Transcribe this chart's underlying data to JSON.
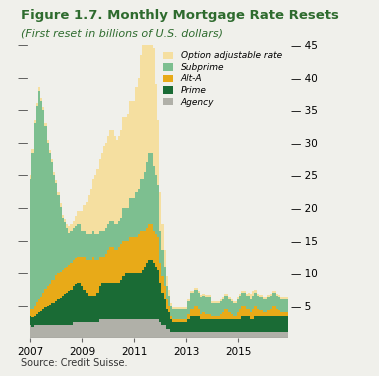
{
  "title": "Figure 1.7. Monthly Mortgage Rate Resets",
  "subtitle": "(First reset in billions of U.S. dollars)",
  "source": "Source: Credit Suisse.",
  "title_color": "#2e6b2e",
  "subtitle_color": "#2e6b2e",
  "colors": {
    "option_adjustable": "#f5dfa0",
    "subprime": "#7dbf90",
    "alt_a": "#e8aa18",
    "prime": "#1a6b35",
    "agency": "#b0b0a8"
  },
  "legend_labels": [
    "Option adjustable rate",
    "Subprime",
    "Alt-A",
    "Prime",
    "Agency"
  ],
  "ylim": [
    0,
    45
  ],
  "yticks": [
    0,
    5,
    10,
    15,
    20,
    25,
    30,
    35,
    40,
    45
  ],
  "bg_color": "#f0f0eb",
  "agency": [
    2.0,
    1.8,
    2.0,
    2.0,
    2.0,
    2.0,
    2.0,
    2.0,
    2.0,
    2.0,
    2.0,
    2.0,
    2.0,
    2.0,
    2.0,
    2.0,
    2.0,
    2.0,
    2.0,
    2.0,
    2.5,
    2.5,
    2.5,
    2.5,
    2.5,
    2.5,
    2.5,
    2.5,
    2.5,
    2.5,
    2.5,
    2.5,
    3.0,
    3.0,
    3.0,
    3.0,
    3.0,
    3.0,
    3.0,
    3.0,
    3.0,
    3.0,
    3.0,
    3.0,
    3.0,
    3.0,
    3.0,
    3.0,
    3.0,
    3.0,
    3.0,
    3.0,
    3.0,
    3.0,
    3.0,
    3.0,
    3.0,
    3.0,
    3.0,
    3.0,
    2.5,
    2.0,
    2.0,
    1.5,
    1.5,
    1.0,
    1.0,
    1.0,
    1.0,
    1.0,
    1.0,
    1.0,
    1.0,
    1.0,
    1.0,
    1.0,
    1.0,
    1.0,
    1.0,
    1.0,
    1.0,
    1.0,
    1.0,
    1.0,
    1.0,
    1.0,
    1.0,
    1.0,
    1.0,
    1.0,
    1.0,
    1.0,
    1.0,
    1.0,
    1.0,
    1.0,
    1.0,
    1.0,
    1.0,
    1.0,
    1.0,
    1.0,
    1.0,
    1.0,
    1.0,
    1.0,
    1.0,
    1.0,
    1.0,
    1.0,
    1.0,
    1.0,
    1.0,
    1.0,
    1.0,
    1.0,
    1.0,
    1.0,
    1.0,
    1.0
  ],
  "prime": [
    1.5,
    1.5,
    1.5,
    1.8,
    2.0,
    2.2,
    2.5,
    2.8,
    3.0,
    3.2,
    3.5,
    3.5,
    3.8,
    4.0,
    4.2,
    4.5,
    4.8,
    5.0,
    5.2,
    5.5,
    5.5,
    5.8,
    6.0,
    6.0,
    5.5,
    5.0,
    4.5,
    4.0,
    4.0,
    4.0,
    4.0,
    4.5,
    5.0,
    5.5,
    5.5,
    5.5,
    5.5,
    5.5,
    5.5,
    5.5,
    5.5,
    5.5,
    6.0,
    6.5,
    7.0,
    7.0,
    7.0,
    7.0,
    7.0,
    7.0,
    7.0,
    7.0,
    7.5,
    8.0,
    8.5,
    9.0,
    9.0,
    8.5,
    8.0,
    7.5,
    6.0,
    5.0,
    4.0,
    3.0,
    2.5,
    2.0,
    1.5,
    1.5,
    1.5,
    1.5,
    1.5,
    1.5,
    1.5,
    2.0,
    2.5,
    2.5,
    2.5,
    2.5,
    2.5,
    2.0,
    2.0,
    2.0,
    2.0,
    2.0,
    2.0,
    2.0,
    2.0,
    2.0,
    2.0,
    2.0,
    2.0,
    2.0,
    2.0,
    2.0,
    2.0,
    2.0,
    2.0,
    2.0,
    2.5,
    2.5,
    2.5,
    2.5,
    2.0,
    2.0,
    2.5,
    2.5,
    2.5,
    2.5,
    2.5,
    2.5,
    2.5,
    2.5,
    2.5,
    2.5,
    2.5,
    2.5,
    2.5,
    2.5,
    2.5,
    2.5
  ],
  "alt_a": [
    1.0,
    1.2,
    1.5,
    1.8,
    2.0,
    2.2,
    2.5,
    2.8,
    3.0,
    3.2,
    3.5,
    3.5,
    4.0,
    4.0,
    4.0,
    4.0,
    4.0,
    4.0,
    4.0,
    4.0,
    4.0,
    4.0,
    4.0,
    4.0,
    4.5,
    5.0,
    5.0,
    5.5,
    5.5,
    6.0,
    5.5,
    5.0,
    4.5,
    4.0,
    4.0,
    4.5,
    5.0,
    5.5,
    5.5,
    5.0,
    5.0,
    5.5,
    5.5,
    5.5,
    5.0,
    5.0,
    5.5,
    5.5,
    5.5,
    5.5,
    6.0,
    6.5,
    6.0,
    5.5,
    5.5,
    5.5,
    5.5,
    5.0,
    5.0,
    5.0,
    3.0,
    2.5,
    2.0,
    1.5,
    1.0,
    0.5,
    0.5,
    0.5,
    0.5,
    0.5,
    0.5,
    0.5,
    0.5,
    0.8,
    1.0,
    1.0,
    1.5,
    1.5,
    1.0,
    0.8,
    1.0,
    0.8,
    0.8,
    0.8,
    0.5,
    0.5,
    0.5,
    0.5,
    0.8,
    1.0,
    1.5,
    1.5,
    1.0,
    0.8,
    0.5,
    0.5,
    1.0,
    1.5,
    1.5,
    1.5,
    1.0,
    1.0,
    1.0,
    1.5,
    1.5,
    1.0,
    0.8,
    0.8,
    0.5,
    0.5,
    0.8,
    1.0,
    1.5,
    1.5,
    1.0,
    0.8,
    0.5,
    0.5,
    0.5,
    0.5
  ],
  "subprime": [
    20,
    24,
    28,
    30,
    32,
    30,
    28,
    25,
    22,
    20,
    18,
    16,
    14,
    12,
    10,
    8,
    7,
    6,
    5,
    5,
    5,
    5,
    5,
    5,
    4,
    4,
    4,
    4,
    4,
    4,
    4,
    4,
    4,
    4,
    4,
    4,
    4,
    4,
    4,
    4,
    4,
    4,
    4,
    5,
    5,
    5,
    6,
    6,
    6,
    7,
    7,
    8,
    8,
    9,
    10,
    11,
    11,
    10,
    9,
    8,
    5,
    4,
    3,
    2,
    1.5,
    1.5,
    1.5,
    1.5,
    1.5,
    1.5,
    1.5,
    1.5,
    1.5,
    2.0,
    2.5,
    2.5,
    2.5,
    2.5,
    2.5,
    2.5,
    2.5,
    2.5,
    2.5,
    2.5,
    2.0,
    2.0,
    2.0,
    2.0,
    2.0,
    2.0,
    2.0,
    2.0,
    2.0,
    2.0,
    2.0,
    2.0,
    2.0,
    2.0,
    2.0,
    2.0,
    2.0,
    2.0,
    2.0,
    2.0,
    2.0,
    2.0,
    2.0,
    2.0,
    2.0,
    2.0,
    2.0,
    2.0,
    2.0,
    2.0,
    2.0,
    2.0,
    2.0,
    2.0,
    2.0,
    2.0
  ],
  "option_adj": [
    0.5,
    0.5,
    0.5,
    0.5,
    0.5,
    0.5,
    0.5,
    0.5,
    0.5,
    0.5,
    0.5,
    0.5,
    0.5,
    0.5,
    0.5,
    0.5,
    0.5,
    0.5,
    1.0,
    1.0,
    1.0,
    1.5,
    2.0,
    2.0,
    3.0,
    4.0,
    5.0,
    6.0,
    7.0,
    8.0,
    9.0,
    10.0,
    11.0,
    12.0,
    13.0,
    13.0,
    13.5,
    14.0,
    14.0,
    13.5,
    13.0,
    13.0,
    13.5,
    14.0,
    14.0,
    14.5,
    15.0,
    15.0,
    15.0,
    16.0,
    17.0,
    19.0,
    21.0,
    23.0,
    24.0,
    25.0,
    22.0,
    18.0,
    14.0,
    10.0,
    6.0,
    4.0,
    2.5,
    1.5,
    1.0,
    0.5,
    0.3,
    0.3,
    0.3,
    0.3,
    0.3,
    0.3,
    0.3,
    0.3,
    0.3,
    0.3,
    0.3,
    0.3,
    0.3,
    0.3,
    0.3,
    0.3,
    0.3,
    0.3,
    0.3,
    0.3,
    0.3,
    0.3,
    0.3,
    0.3,
    0.3,
    0.3,
    0.3,
    0.3,
    0.3,
    0.3,
    0.3,
    0.3,
    0.3,
    0.3,
    0.3,
    0.5,
    0.8,
    0.8,
    0.5,
    0.3,
    0.3,
    0.3,
    0.3,
    0.3,
    0.3,
    0.3,
    0.3,
    0.3,
    0.3,
    0.3,
    0.3,
    0.3,
    0.3,
    0.3
  ]
}
